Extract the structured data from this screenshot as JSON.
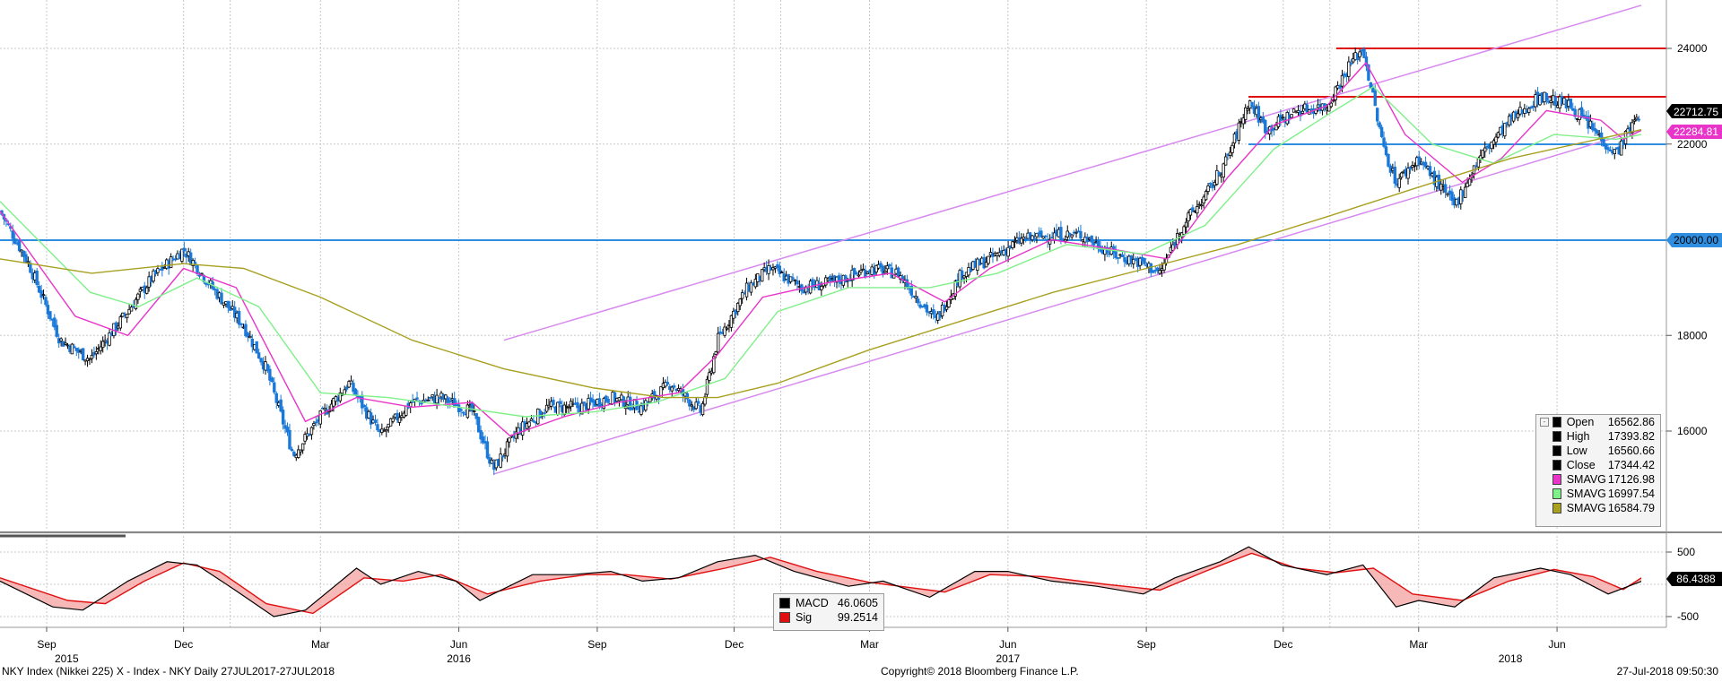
{
  "footer": {
    "security": "NKY Index (Nikkei 225) X - Index - NKY  Daily 27JUL2017-27JUL2018",
    "copyright": "Copyright© 2018 Bloomberg Finance L.P.",
    "timestamp": "27-Jul-2018 09:50:30"
  },
  "colors": {
    "candle": "#000000",
    "sma_fast": "#e834c8",
    "sma_mid": "#7ff08a",
    "sma_slow": "#a8a020",
    "trend_channel": "#d88af0",
    "support_line": "#2f8ee0",
    "resistance_line": "#e01010",
    "macd": "#000000",
    "signal": "#e01010"
  },
  "price_legend": {
    "open_label": "Open",
    "open_value": "16562.86",
    "high_label": "High",
    "high_value": "17393.82",
    "low_label": "Low",
    "low_value": "16560.66",
    "close_label": "Close",
    "close_value": "17344.42",
    "sma1_label": "SMAVG",
    "sma1_value": "17126.98",
    "sma2_label": "SMAVG",
    "sma2_value": "16997.54",
    "sma3_label": "SMAVG",
    "sma3_value": "16584.79"
  },
  "macd_legend": {
    "macd_label": "MACD",
    "macd_value": "46.0605",
    "sig_label": "Sig",
    "sig_value": "99.2514"
  },
  "chart_data": [
    {
      "type": "candlestick",
      "title": "",
      "y_ticks": [
        16000,
        18000,
        20000,
        22000,
        24000
      ],
      "ylim": [
        14000,
        25000
      ],
      "x_month_labels": [
        "Sep",
        "Dec",
        "Mar",
        "Jun",
        "Sep",
        "Dec",
        "Mar",
        "Jun",
        "Sep",
        "Dec",
        "Mar",
        "Jun"
      ],
      "x_year_labels": [
        "2015",
        "2016",
        "2017",
        "2018"
      ],
      "last_price_tag": "22712.75",
      "sma_price_tag": "22284.81",
      "horizontal_tag": "20000.00",
      "horizontal_lines": [
        {
          "name": "resistance",
          "value": 24000
        },
        {
          "name": "resistance",
          "value": 23000
        },
        {
          "name": "support",
          "value": 22000
        },
        {
          "name": "support",
          "value": 20000
        }
      ],
      "close_path": [
        [
          "2015-08-01",
          20600
        ],
        [
          "2015-08-20",
          19500
        ],
        [
          "2015-09-10",
          17900
        ],
        [
          "2015-09-30",
          17500
        ],
        [
          "2015-10-20",
          18300
        ],
        [
          "2015-11-10",
          19200
        ],
        [
          "2015-12-01",
          19800
        ],
        [
          "2015-12-20",
          19000
        ],
        [
          "2016-01-10",
          18200
        ],
        [
          "2016-01-25",
          17300
        ],
        [
          "2016-02-12",
          15500
        ],
        [
          "2016-03-01",
          16300
        ],
        [
          "2016-03-20",
          17000
        ],
        [
          "2016-04-10",
          15900
        ],
        [
          "2016-04-30",
          16600
        ],
        [
          "2016-05-20",
          16700
        ],
        [
          "2016-06-10",
          16400
        ],
        [
          "2016-06-24",
          15200
        ],
        [
          "2016-07-10",
          16000
        ],
        [
          "2016-07-30",
          16500
        ],
        [
          "2016-08-20",
          16500
        ],
        [
          "2016-09-10",
          16700
        ],
        [
          "2016-09-30",
          16500
        ],
        [
          "2016-10-20",
          17000
        ],
        [
          "2016-11-09",
          16400
        ],
        [
          "2016-11-20",
          17900
        ],
        [
          "2016-12-10",
          19000
        ],
        [
          "2016-12-25",
          19400
        ],
        [
          "2017-01-15",
          19000
        ],
        [
          "2017-02-05",
          19100
        ],
        [
          "2017-03-01",
          19400
        ],
        [
          "2017-03-20",
          19300
        ],
        [
          "2017-04-14",
          18300
        ],
        [
          "2017-05-01",
          19300
        ],
        [
          "2017-05-20",
          19600
        ],
        [
          "2017-06-10",
          20000
        ],
        [
          "2017-06-30",
          20100
        ],
        [
          "2017-07-20",
          20100
        ],
        [
          "2017-08-10",
          19700
        ],
        [
          "2017-08-30",
          19500
        ],
        [
          "2017-09-10",
          19300
        ],
        [
          "2017-09-25",
          20300
        ],
        [
          "2017-10-10",
          20900
        ],
        [
          "2017-10-25",
          21700
        ],
        [
          "2017-11-08",
          22900
        ],
        [
          "2017-11-20",
          22300
        ],
        [
          "2017-12-10",
          22700
        ],
        [
          "2017-12-30",
          22800
        ],
        [
          "2018-01-15",
          23700
        ],
        [
          "2018-01-23",
          24000
        ],
        [
          "2018-02-05",
          22000
        ],
        [
          "2018-02-14",
          21200
        ],
        [
          "2018-03-01",
          21700
        ],
        [
          "2018-03-25",
          20700
        ],
        [
          "2018-04-10",
          21700
        ],
        [
          "2018-05-01",
          22500
        ],
        [
          "2018-05-21",
          23000
        ],
        [
          "2018-06-10",
          22800
        ],
        [
          "2018-06-28",
          22200
        ],
        [
          "2018-07-10",
          21800
        ],
        [
          "2018-07-27",
          22713
        ]
      ],
      "series": [
        {
          "values_key": "close_path"
        },
        {
          "values": [
            [
              "2015-08-01",
              20600
            ],
            [
              "2015-09-20",
              18400
            ],
            [
              "2015-10-25",
              18000
            ],
            [
              "2015-12-01",
              19400
            ],
            [
              "2016-01-05",
              19000
            ],
            [
              "2016-02-20",
              16200
            ],
            [
              "2016-03-25",
              16700
            ],
            [
              "2016-05-01",
              16500
            ],
            [
              "2016-06-10",
              16600
            ],
            [
              "2016-07-05",
              15900
            ],
            [
              "2016-08-10",
              16300
            ],
            [
              "2016-09-15",
              16600
            ],
            [
              "2016-10-25",
              16800
            ],
            [
              "2016-11-20",
              17600
            ],
            [
              "2016-12-20",
              18800
            ],
            [
              "2017-02-01",
              19100
            ],
            [
              "2017-03-15",
              19300
            ],
            [
              "2017-04-20",
              18700
            ],
            [
              "2017-05-20",
              19400
            ],
            [
              "2017-06-30",
              20000
            ],
            [
              "2017-08-10",
              19800
            ],
            [
              "2017-09-15",
              19600
            ],
            [
              "2017-10-25",
              21300
            ],
            [
              "2017-11-25",
              22400
            ],
            [
              "2017-12-30",
              22800
            ],
            [
              "2018-01-25",
              23700
            ],
            [
              "2018-02-20",
              22200
            ],
            [
              "2018-03-30",
              21200
            ],
            [
              "2018-04-25",
              21700
            ],
            [
              "2018-05-25",
              22700
            ],
            [
              "2018-06-30",
              22500
            ],
            [
              "2018-07-15",
              22100
            ],
            [
              "2018-07-27",
              22285
            ]
          ]
        },
        {
          "values": [
            [
              "2015-08-01",
              20800
            ],
            [
              "2015-09-30",
              18900
            ],
            [
              "2015-11-01",
              18600
            ],
            [
              "2015-12-10",
              19200
            ],
            [
              "2016-01-20",
              18600
            ],
            [
              "2016-03-01",
              16800
            ],
            [
              "2016-04-15",
              16700
            ],
            [
              "2016-06-01",
              16500
            ],
            [
              "2016-07-15",
              16300
            ],
            [
              "2016-08-30",
              16400
            ],
            [
              "2016-10-10",
              16600
            ],
            [
              "2016-11-25",
              17100
            ],
            [
              "2016-12-30",
              18500
            ],
            [
              "2017-02-15",
              19000
            ],
            [
              "2017-04-10",
              19000
            ],
            [
              "2017-05-25",
              19300
            ],
            [
              "2017-07-10",
              19900
            ],
            [
              "2017-08-30",
              19700
            ],
            [
              "2017-10-10",
              20300
            ],
            [
              "2017-11-25",
              21900
            ],
            [
              "2017-12-30",
              22600
            ],
            [
              "2018-01-30",
              23200
            ],
            [
              "2018-03-10",
              22000
            ],
            [
              "2018-04-20",
              21600
            ],
            [
              "2018-05-30",
              22200
            ],
            [
              "2018-07-10",
              22100
            ],
            [
              "2018-07-27",
              22200
            ]
          ]
        },
        {
          "values": [
            [
              "2015-08-01",
              19600
            ],
            [
              "2015-10-01",
              19300
            ],
            [
              "2015-12-01",
              19500
            ],
            [
              "2016-01-10",
              19400
            ],
            [
              "2016-03-01",
              18800
            ],
            [
              "2016-05-01",
              17900
            ],
            [
              "2016-07-01",
              17300
            ],
            [
              "2016-08-30",
              16900
            ],
            [
              "2016-10-15",
              16700
            ],
            [
              "2016-11-20",
              16700
            ],
            [
              "2016-12-30",
              17000
            ],
            [
              "2017-03-01",
              17700
            ],
            [
              "2017-05-01",
              18300
            ],
            [
              "2017-07-01",
              18900
            ],
            [
              "2017-09-01",
              19400
            ],
            [
              "2017-11-01",
              19900
            ],
            [
              "2018-01-01",
              20500
            ],
            [
              "2018-03-01",
              21100
            ],
            [
              "2018-05-01",
              21700
            ],
            [
              "2018-07-27",
              22300
            ]
          ]
        }
      ],
      "trend_channel": {
        "upper": [
          [
            "2016-07-01",
            17900
          ],
          [
            "2018-07-27",
            24900
          ]
        ],
        "lower": [
          [
            "2016-06-24",
            15100
          ],
          [
            "2018-07-27",
            22300
          ]
        ]
      }
    },
    {
      "type": "line",
      "title": "MACD",
      "y_ticks": [
        500,
        -500
      ],
      "ylim": [
        -800,
        800
      ],
      "last_value_tag": "86.4388",
      "series": [
        {
          "values": [
            [
              "2015-08-01",
              50
            ],
            [
              "2015-09-05",
              -350
            ],
            [
              "2015-09-25",
              -400
            ],
            [
              "2015-10-25",
              50
            ],
            [
              "2015-11-20",
              350
            ],
            [
              "2015-12-10",
              300
            ],
            [
              "2016-01-05",
              -100
            ],
            [
              "2016-01-30",
              -500
            ],
            [
              "2016-02-20",
              -400
            ],
            [
              "2016-03-25",
              250
            ],
            [
              "2016-04-10",
              0
            ],
            [
              "2016-05-05",
              200
            ],
            [
              "2016-05-30",
              50
            ],
            [
              "2016-06-15",
              -250
            ],
            [
              "2016-07-20",
              150
            ],
            [
              "2016-08-15",
              150
            ],
            [
              "2016-09-10",
              200
            ],
            [
              "2016-10-01",
              50
            ],
            [
              "2016-10-25",
              100
            ],
            [
              "2016-11-20",
              350
            ],
            [
              "2016-12-15",
              450
            ],
            [
              "2017-01-10",
              200
            ],
            [
              "2017-02-15",
              -30
            ],
            [
              "2017-03-10",
              50
            ],
            [
              "2017-04-10",
              -200
            ],
            [
              "2017-05-10",
              200
            ],
            [
              "2017-06-01",
              200
            ],
            [
              "2017-06-30",
              50
            ],
            [
              "2017-07-30",
              -30
            ],
            [
              "2017-08-30",
              -150
            ],
            [
              "2017-09-20",
              100
            ],
            [
              "2017-10-20",
              350
            ],
            [
              "2017-11-08",
              580
            ],
            [
              "2017-11-30",
              300
            ],
            [
              "2017-12-30",
              150
            ],
            [
              "2018-01-23",
              300
            ],
            [
              "2018-02-14",
              -350
            ],
            [
              "2018-03-01",
              -250
            ],
            [
              "2018-03-25",
              -350
            ],
            [
              "2018-04-20",
              100
            ],
            [
              "2018-05-21",
              250
            ],
            [
              "2018-06-10",
              150
            ],
            [
              "2018-07-05",
              -150
            ],
            [
              "2018-07-27",
              46
            ]
          ]
        },
        {
          "values": [
            [
              "2015-08-01",
              100
            ],
            [
              "2015-09-15",
              -250
            ],
            [
              "2015-10-10",
              -300
            ],
            [
              "2015-11-05",
              50
            ],
            [
              "2015-12-01",
              330
            ],
            [
              "2015-12-25",
              200
            ],
            [
              "2016-01-25",
              -300
            ],
            [
              "2016-02-25",
              -450
            ],
            [
              "2016-03-30",
              100
            ],
            [
              "2016-04-25",
              50
            ],
            [
              "2016-05-20",
              150
            ],
            [
              "2016-06-20",
              -150
            ],
            [
              "2016-07-25",
              50
            ],
            [
              "2016-08-25",
              150
            ],
            [
              "2016-09-20",
              150
            ],
            [
              "2016-10-20",
              80
            ],
            [
              "2016-11-25",
              250
            ],
            [
              "2016-12-25",
              420
            ],
            [
              "2017-01-25",
              200
            ],
            [
              "2017-03-01",
              30
            ],
            [
              "2017-04-20",
              -120
            ],
            [
              "2017-05-20",
              150
            ],
            [
              "2017-06-25",
              120
            ],
            [
              "2017-08-05",
              0
            ],
            [
              "2017-09-10",
              -90
            ],
            [
              "2017-10-10",
              200
            ],
            [
              "2017-11-10",
              480
            ],
            [
              "2017-12-10",
              250
            ],
            [
              "2018-01-05",
              180
            ],
            [
              "2018-01-30",
              250
            ],
            [
              "2018-02-25",
              -150
            ],
            [
              "2018-03-30",
              -250
            ],
            [
              "2018-04-30",
              50
            ],
            [
              "2018-05-30",
              230
            ],
            [
              "2018-06-25",
              120
            ],
            [
              "2018-07-15",
              -80
            ],
            [
              "2018-07-27",
              99
            ]
          ]
        }
      ]
    }
  ]
}
